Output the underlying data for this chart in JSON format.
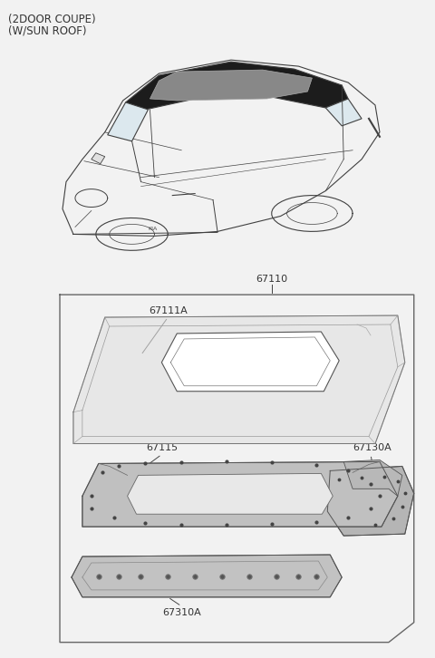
{
  "title_line1": "(2DOOR COUPE)",
  "title_line2": "(W/SUN ROOF)",
  "bg_color": "#f2f2f2",
  "line_color": "#404040",
  "font_size_title": 8.5,
  "font_size_parts": 8.0,
  "label_67110": "67110",
  "label_67111A": "67111A",
  "label_67115": "67115",
  "label_67130A": "67130A",
  "label_67310A": "67310A"
}
